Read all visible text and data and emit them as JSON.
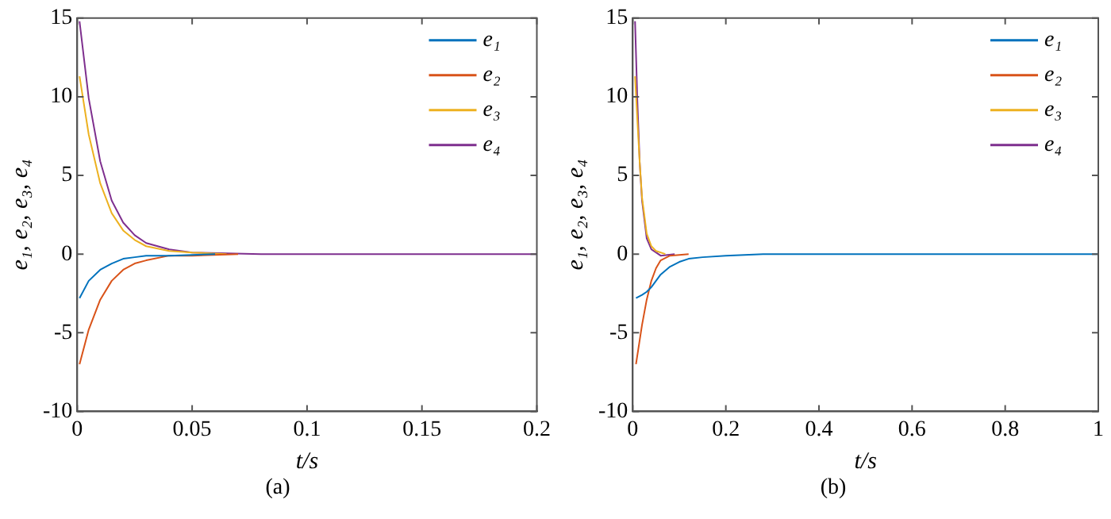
{
  "chart_data": [
    {
      "type": "line",
      "xlabel": "t/s",
      "ylabel": "e₁, e₂, e₃, e₄",
      "annotations": [
        "(a)"
      ],
      "xlim": [
        0,
        0.2
      ],
      "xticks": [
        0,
        0.05,
        0.1,
        0.15,
        0.2
      ],
      "ylim": [
        -10,
        15
      ],
      "yticks": [
        -10,
        -5,
        0,
        5,
        10,
        15
      ],
      "grid": false,
      "legend": "top right",
      "marker": "none",
      "line_style": "solid",
      "series": [
        {
          "name": "e₁",
          "color": "#0072bd",
          "x": [
            0.001,
            0.005,
            0.01,
            0.015,
            0.02,
            0.025,
            0.03,
            0.04,
            0.06
          ],
          "values": [
            -2.8,
            -1.7,
            -1,
            -0.6,
            -0.3,
            -0.2,
            -0.1,
            -0.1,
            0
          ]
        },
        {
          "name": "e₂",
          "color": "#d95319",
          "x": [
            0.001,
            0.005,
            0.01,
            0.015,
            0.02,
            0.025,
            0.03,
            0.04,
            0.05,
            0.07
          ],
          "values": [
            -7,
            -4.8,
            -2.9,
            -1.7,
            -1,
            -0.6,
            -0.4,
            -0.1,
            -0.1,
            0
          ]
        },
        {
          "name": "e₃",
          "color": "#edb120",
          "x": [
            0.001,
            0.005,
            0.01,
            0.015,
            0.02,
            0.025,
            0.03,
            0.04,
            0.05,
            0.065
          ],
          "values": [
            11.3,
            7.6,
            4.5,
            2.6,
            1.5,
            0.9,
            0.5,
            0.2,
            0.1,
            0
          ]
        },
        {
          "name": "e₄",
          "color": "#7e2f8e",
          "x": [
            0.001,
            0.005,
            0.01,
            0.015,
            0.02,
            0.025,
            0.03,
            0.04,
            0.05,
            0.08,
            0.2
          ],
          "values": [
            14.8,
            9.9,
            5.9,
            3.4,
            2,
            1.2,
            0.7,
            0.3,
            0.1,
            0,
            0
          ]
        }
      ]
    },
    {
      "type": "line",
      "xlabel": "t/s",
      "ylabel": "e₁, e₂, e₃, e₄",
      "annotations": [
        "(b)"
      ],
      "xlim": [
        0,
        1
      ],
      "xticks": [
        0,
        0.2,
        0.4,
        0.6,
        0.8,
        1
      ],
      "ylim": [
        -10,
        15
      ],
      "yticks": [
        -10,
        -5,
        0,
        5,
        10,
        15
      ],
      "grid": false,
      "legend": "top right",
      "marker": "none",
      "line_style": "solid",
      "series": [
        {
          "name": "e₁",
          "color": "#0072bd",
          "x": [
            0.007,
            0.02,
            0.03,
            0.04,
            0.05,
            0.06,
            0.08,
            0.1,
            0.12,
            0.15,
            0.2,
            0.28,
            1
          ],
          "values": [
            -2.8,
            -2.6,
            -2.4,
            -2.1,
            -1.7,
            -1.3,
            -0.8,
            -0.5,
            -0.3,
            -0.2,
            -0.1,
            0,
            0
          ]
        },
        {
          "name": "e₂",
          "color": "#d95319",
          "x": [
            0.007,
            0.02,
            0.03,
            0.04,
            0.05,
            0.06,
            0.08,
            0.12
          ],
          "values": [
            -7,
            -4.5,
            -2.9,
            -1.7,
            -0.9,
            -0.4,
            -0.1,
            0
          ]
        },
        {
          "name": "e₃",
          "color": "#edb120",
          "x": [
            0.005,
            0.01,
            0.015,
            0.02,
            0.03,
            0.04,
            0.05,
            0.07
          ],
          "values": [
            11.3,
            8.5,
            5.8,
            3.6,
            1.3,
            0.5,
            0.2,
            0
          ]
        },
        {
          "name": "e₄",
          "color": "#7e2f8e",
          "x": [
            0.005,
            0.01,
            0.015,
            0.02,
            0.03,
            0.04,
            0.05,
            0.06,
            0.09
          ],
          "values": [
            14.8,
            9.7,
            5.8,
            3.4,
            1,
            0.3,
            0.1,
            -0.1,
            0
          ]
        }
      ]
    }
  ]
}
